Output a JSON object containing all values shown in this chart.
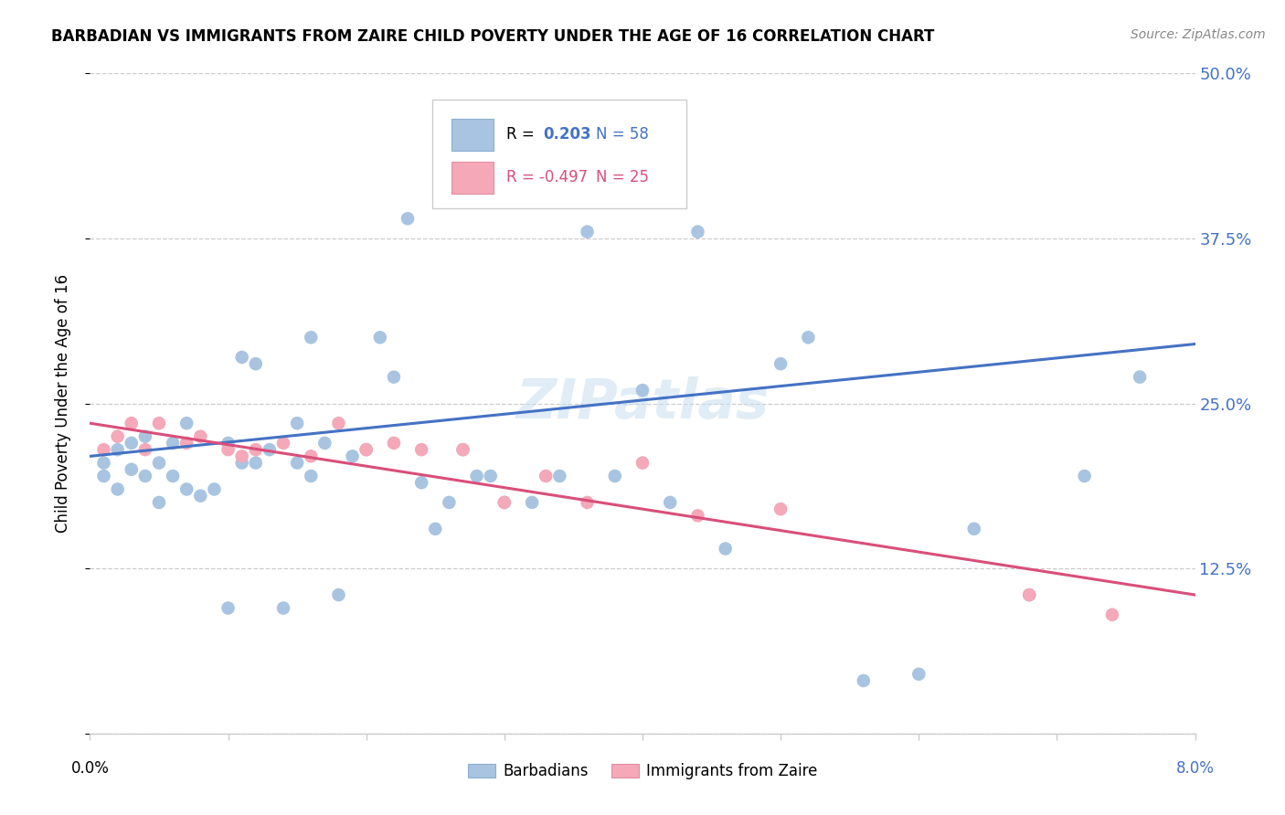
{
  "title": "BARBADIAN VS IMMIGRANTS FROM ZAIRE CHILD POVERTY UNDER THE AGE OF 16 CORRELATION CHART",
  "source": "Source: ZipAtlas.com",
  "ylabel": "Child Poverty Under the Age of 16",
  "xmin": 0.0,
  "xmax": 0.08,
  "ymin": 0.0,
  "ymax": 0.5,
  "yticks": [
    0.0,
    0.125,
    0.25,
    0.375,
    0.5
  ],
  "ytick_labels": [
    "",
    "12.5%",
    "25.0%",
    "37.5%",
    "50.0%"
  ],
  "blue_color": "#a8c4e0",
  "pink_color": "#f4a8b8",
  "blue_line_color": "#4472c4",
  "pink_line_color": "#d94f7a",
  "legend_line1_r": "R =",
  "legend_line1_val": "0.203",
  "legend_line1_n": "N = 58",
  "legend_line2_r": "R = -0.497",
  "legend_line2_n": "N = 25",
  "blue_line_y0": 0.21,
  "blue_line_y1": 0.295,
  "pink_line_y0": 0.235,
  "pink_line_y1": 0.105,
  "blue_x": [
    0.001,
    0.001,
    0.002,
    0.002,
    0.003,
    0.003,
    0.004,
    0.004,
    0.005,
    0.005,
    0.006,
    0.006,
    0.007,
    0.007,
    0.008,
    0.009,
    0.01,
    0.01,
    0.011,
    0.011,
    0.012,
    0.012,
    0.013,
    0.014,
    0.015,
    0.015,
    0.016,
    0.016,
    0.017,
    0.018,
    0.019,
    0.02,
    0.021,
    0.022,
    0.023,
    0.024,
    0.025,
    0.026,
    0.027,
    0.028,
    0.029,
    0.03,
    0.032,
    0.034,
    0.036,
    0.038,
    0.04,
    0.042,
    0.044,
    0.046,
    0.05,
    0.052,
    0.056,
    0.06,
    0.064,
    0.068,
    0.072,
    0.076
  ],
  "blue_y": [
    0.205,
    0.195,
    0.215,
    0.185,
    0.22,
    0.2,
    0.195,
    0.225,
    0.205,
    0.175,
    0.22,
    0.195,
    0.235,
    0.185,
    0.18,
    0.185,
    0.22,
    0.095,
    0.285,
    0.205,
    0.28,
    0.205,
    0.215,
    0.095,
    0.235,
    0.205,
    0.3,
    0.195,
    0.22,
    0.105,
    0.21,
    0.215,
    0.3,
    0.27,
    0.39,
    0.19,
    0.155,
    0.175,
    0.215,
    0.195,
    0.195,
    0.175,
    0.175,
    0.195,
    0.38,
    0.195,
    0.26,
    0.175,
    0.38,
    0.14,
    0.28,
    0.3,
    0.04,
    0.045,
    0.155,
    0.105,
    0.195,
    0.27
  ],
  "pink_x": [
    0.001,
    0.002,
    0.003,
    0.004,
    0.005,
    0.007,
    0.008,
    0.01,
    0.011,
    0.012,
    0.014,
    0.016,
    0.018,
    0.02,
    0.022,
    0.024,
    0.027,
    0.03,
    0.033,
    0.036,
    0.04,
    0.044,
    0.05,
    0.068,
    0.074
  ],
  "pink_y": [
    0.215,
    0.225,
    0.235,
    0.215,
    0.235,
    0.22,
    0.225,
    0.215,
    0.21,
    0.215,
    0.22,
    0.21,
    0.235,
    0.215,
    0.22,
    0.215,
    0.215,
    0.175,
    0.195,
    0.175,
    0.205,
    0.165,
    0.17,
    0.105,
    0.09
  ]
}
